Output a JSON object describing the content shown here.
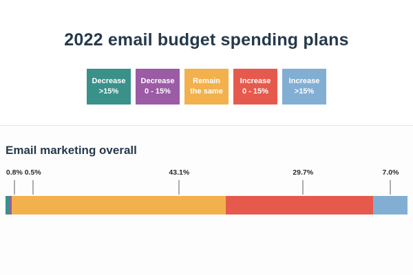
{
  "title": "2022 email budget spending plans",
  "legend": {
    "items": [
      {
        "line1": "Decrease",
        "line2": ">15%",
        "color": "#39918a"
      },
      {
        "line1": "Decrease",
        "line2": "0 - 15%",
        "color": "#9b5ba5"
      },
      {
        "line1": "Remain",
        "line2": "the same",
        "color": "#f2b14d"
      },
      {
        "line1": "Increase",
        "line2": "0 - 15%",
        "color": "#e65a4d"
      },
      {
        "line1": "Increase",
        "line2": ">15%",
        "color": "#82aed4"
      }
    ]
  },
  "section": {
    "heading": "Email marketing overall"
  },
  "chart_data": {
    "type": "bar",
    "orientation": "horizontal-stacked",
    "title": "2022 email budget spending plans",
    "row_label": "Email marketing overall",
    "categories": [
      "Decrease >15%",
      "Decrease 0 - 15%",
      "Remain the same",
      "Increase 0 - 15%",
      "Increase >15%"
    ],
    "values": [
      0.8,
      0.5,
      43.1,
      29.7,
      7.0
    ],
    "labels": [
      "0.8%",
      "0.5%",
      "43.1%",
      "29.7%",
      "7.0%"
    ],
    "colors": [
      "#39918a",
      "#9b5ba5",
      "#f2b14d",
      "#e65a4d",
      "#82aed4"
    ],
    "legend_position": "top-center",
    "label_positions_pct": [
      2.2,
      6.8,
      43.2,
      74.0,
      95.8
    ],
    "grid": false
  }
}
